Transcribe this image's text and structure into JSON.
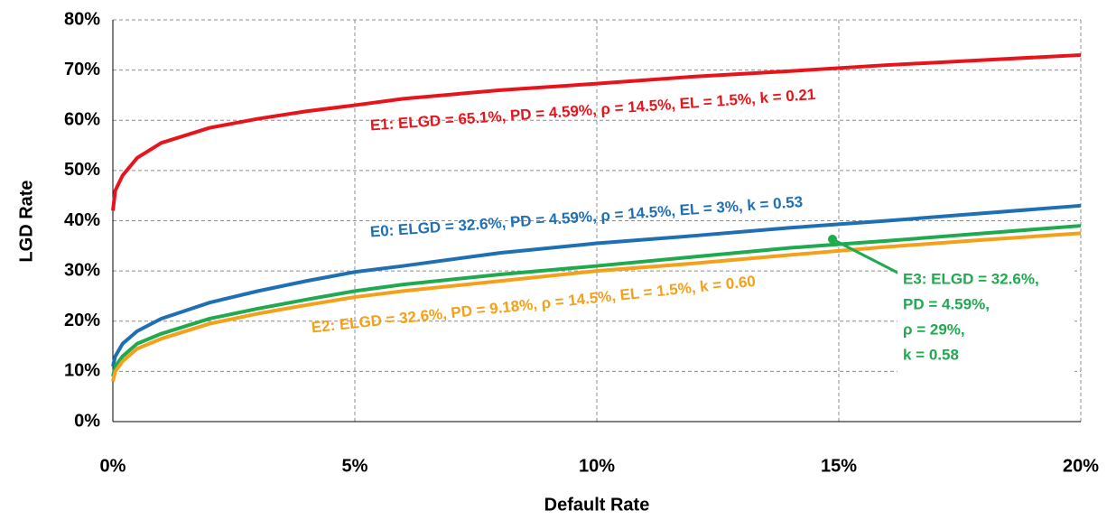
{
  "chart_data": {
    "type": "line",
    "xlabel": "Default Rate",
    "ylabel": "LGD Rate",
    "x": [
      0,
      0.05,
      0.2,
      0.5,
      1,
      2,
      3,
      4,
      5,
      6,
      8,
      10,
      12,
      14,
      16,
      18,
      20
    ],
    "series": [
      {
        "name": "E1",
        "color": "#e8141b",
        "values": [
          42,
          46,
          49,
          52.5,
          55.5,
          58.5,
          60.3,
          61.8,
          63,
          64.3,
          66,
          67.3,
          68.7,
          69.8,
          71,
          72,
          73
        ]
      },
      {
        "name": "E0",
        "color": "#1f6fb5",
        "values": [
          11,
          13,
          15.5,
          18,
          20.5,
          23.7,
          26,
          28,
          29.8,
          31,
          33.6,
          35.5,
          37,
          38.6,
          40,
          41.5,
          43
        ]
      },
      {
        "name": "E3",
        "color": "#1faa4f",
        "values": [
          9,
          11,
          13,
          15.5,
          17.5,
          20.5,
          22.5,
          24.3,
          26,
          27.3,
          29.3,
          31,
          32.8,
          34.6,
          36,
          37.5,
          39
        ]
      },
      {
        "name": "E2",
        "color": "#f5a01a",
        "values": [
          8,
          10,
          12,
          14.5,
          16.5,
          19.5,
          21.5,
          23.2,
          24.8,
          26,
          28,
          30,
          31.5,
          33.2,
          34.8,
          36.2,
          37.5
        ]
      }
    ],
    "xlim": [
      0,
      20
    ],
    "xticks": [
      {
        "value": 0,
        "label": "0%"
      },
      {
        "value": 5,
        "label": "5%"
      },
      {
        "value": 10,
        "label": "10%"
      },
      {
        "value": 15,
        "label": "15%"
      },
      {
        "value": 20,
        "label": "20%"
      }
    ],
    "ylim": [
      0,
      80
    ],
    "yticks": [
      {
        "value": 0,
        "label": "0%"
      },
      {
        "value": 10,
        "label": "10%"
      },
      {
        "value": 20,
        "label": "20%"
      },
      {
        "value": 30,
        "label": "30%"
      },
      {
        "value": 40,
        "label": "40%"
      },
      {
        "value": 50,
        "label": "50%"
      },
      {
        "value": 60,
        "label": "60%"
      },
      {
        "value": 70,
        "label": "70%"
      },
      {
        "value": 80,
        "label": "80%"
      }
    ],
    "grid": true,
    "annotations": [
      {
        "lines": [
          "E1: ELGD = 65.1%, PD = 4.59%, ρ = 14.5%, EL = 1.5%, k = 0.21"
        ],
        "color": "#e8141b"
      },
      {
        "lines": [
          "E0: ELGD = 32.6%, PD = 4.59%, ρ = 14.5%, EL = 3%, k = 0.53"
        ],
        "color": "#1f6fb5"
      },
      {
        "lines": [
          "E2: ELGD = 32.6%, PD = 9.18%, ρ = 14.5%, EL = 1.5%, k = 0.60"
        ],
        "color": "#f5a01a"
      },
      {
        "lines": [
          "E3: ELGD = 32.6%,",
          "PD = 4.59%,",
          "ρ = 29%,",
          "k = 0.58"
        ],
        "color": "#1faa4f"
      }
    ]
  }
}
